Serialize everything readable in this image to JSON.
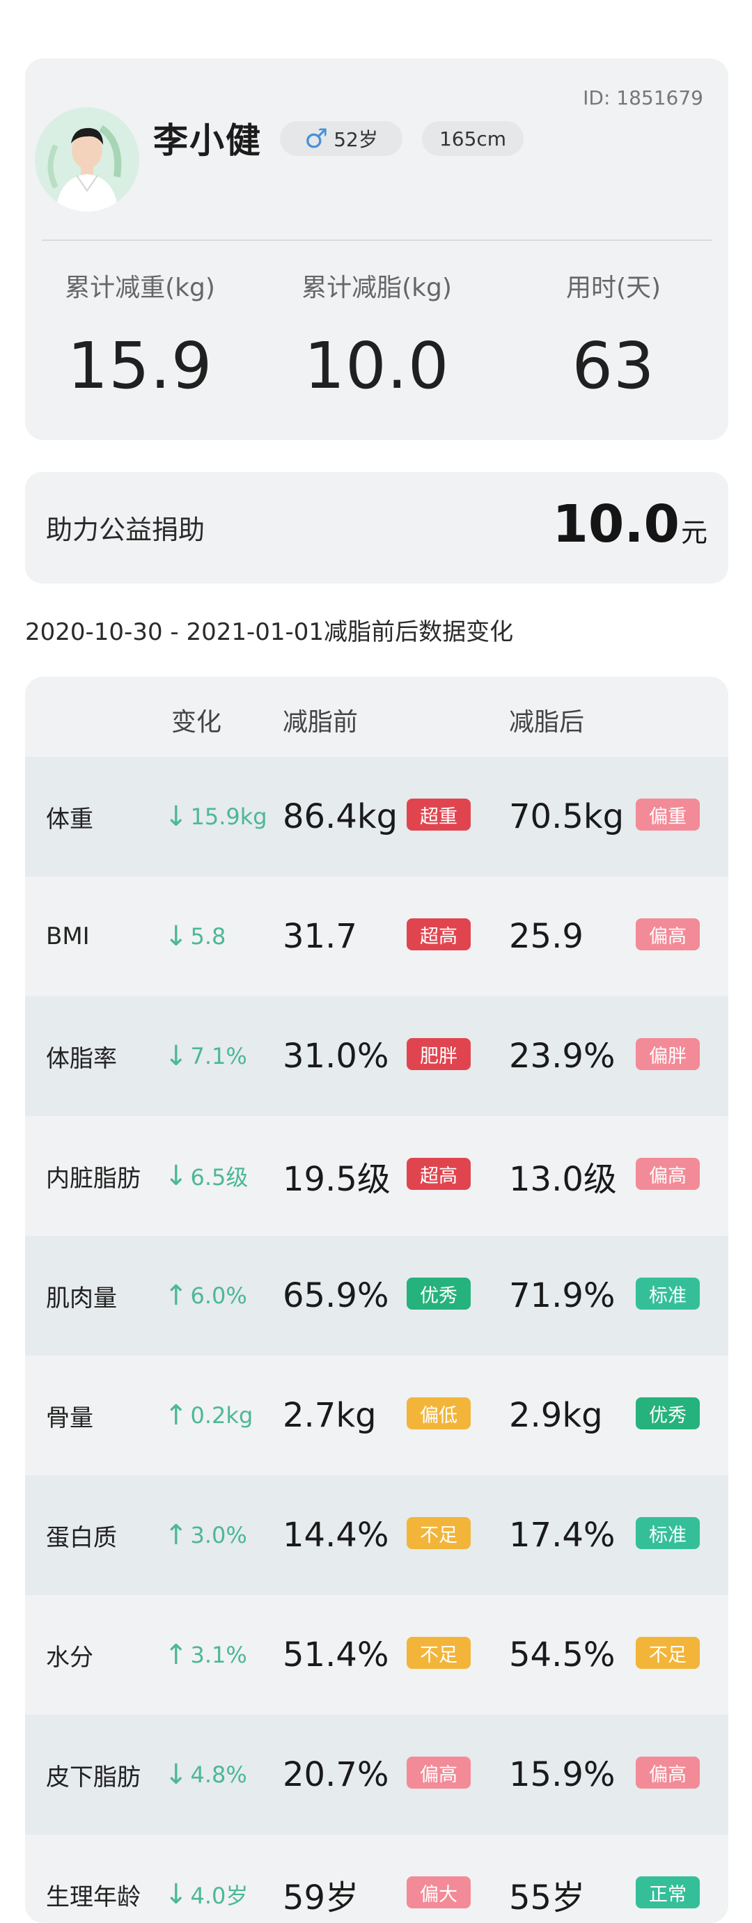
{
  "profile": {
    "id_text": "ID: 1851679",
    "name": "李小健",
    "gender_icon": "male-icon",
    "age": "52岁",
    "height": "165cm",
    "stats": [
      {
        "label": "累计减重(kg)",
        "value": "15.9"
      },
      {
        "label": "累计减脂(kg)",
        "value": "10.0"
      },
      {
        "label": "用时(天)",
        "value": "63"
      }
    ]
  },
  "donation": {
    "label": "助力公益捐助",
    "amount": "10.0",
    "unit": "元"
  },
  "period_title": "2020-10-30 - 2021-01-01减脂前后数据变化",
  "table": {
    "headers": {
      "change": "变化",
      "before": "减脂前",
      "after": "减脂后"
    },
    "rows": [
      {
        "name": "体重",
        "arrow": "↓",
        "change": "15.9kg",
        "before": "86.4kg",
        "before_badge": "超重",
        "before_color": "#e0454f",
        "after": "70.5kg",
        "after_badge": "偏重",
        "after_color": "#f28b97"
      },
      {
        "name": "BMI",
        "arrow": "↓",
        "change": "5.8",
        "before": "31.7",
        "before_badge": "超高",
        "before_color": "#e0454f",
        "after": "25.9",
        "after_badge": "偏高",
        "after_color": "#f28b97"
      },
      {
        "name": "体脂率",
        "arrow": "↓",
        "change": "7.1%",
        "before": "31.0%",
        "before_badge": "肥胖",
        "before_color": "#e0454f",
        "after": "23.9%",
        "after_badge": "偏胖",
        "after_color": "#f28b97"
      },
      {
        "name": "内脏脂肪",
        "arrow": "↓",
        "change": "6.5级",
        "before": "19.5级",
        "before_badge": "超高",
        "before_color": "#e0454f",
        "after": "13.0级",
        "after_badge": "偏高",
        "after_color": "#f28b97"
      },
      {
        "name": "肌肉量",
        "arrow": "↑",
        "change": "6.0%",
        "before": "65.9%",
        "before_badge": "优秀",
        "before_color": "#25b27c",
        "after": "71.9%",
        "after_badge": "标准",
        "after_color": "#35bf99"
      },
      {
        "name": "骨量",
        "arrow": "↑",
        "change": "0.2kg",
        "before": "2.7kg",
        "before_badge": "偏低",
        "before_color": "#f2b53a",
        "after": "2.9kg",
        "after_badge": "优秀",
        "after_color": "#25b27c"
      },
      {
        "name": "蛋白质",
        "arrow": "↑",
        "change": "3.0%",
        "before": "14.4%",
        "before_badge": "不足",
        "before_color": "#f2b53a",
        "after": "17.4%",
        "after_badge": "标准",
        "after_color": "#35bf99"
      },
      {
        "name": "水分",
        "arrow": "↑",
        "change": "3.1%",
        "before": "51.4%",
        "before_badge": "不足",
        "before_color": "#f2b53a",
        "after": "54.5%",
        "after_badge": "不足",
        "after_color": "#f2b53a"
      },
      {
        "name": "皮下脂肪",
        "arrow": "↓",
        "change": "4.8%",
        "before": "20.7%",
        "before_badge": "偏高",
        "before_color": "#f28b97",
        "after": "15.9%",
        "after_badge": "偏高",
        "after_color": "#f28b97"
      },
      {
        "name": "生理年龄",
        "arrow": "↓",
        "change": "4.0岁",
        "before": "59岁",
        "before_badge": "偏大",
        "before_color": "#f28b97",
        "after": "55岁",
        "after_badge": "正常",
        "after_color": "#35bf99"
      }
    ]
  }
}
